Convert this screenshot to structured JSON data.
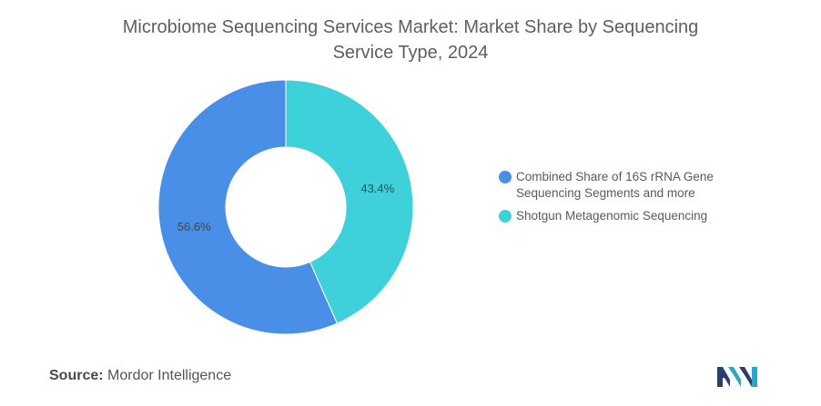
{
  "title_line1": "Microbiome Sequencing Services Market: Market Share by Sequencing",
  "title_line2": "Service Type, 2024",
  "source_label": "Source:",
  "source_value": "Mordor Intelligence",
  "chart_data": {
    "type": "pie",
    "donut": true,
    "title": "Microbiome Sequencing Services Market: Market Share by Sequencing Service Type, 2024",
    "slices": [
      {
        "label": "Shotgun Metagenomic Sequencing",
        "value": 43.4,
        "display": "43.4%",
        "color": "#3fd1d9"
      },
      {
        "label": "Combined Share of 16S rRNA Gene Sequencing Segments and more",
        "value": 56.6,
        "display": "56.6%",
        "color": "#4a8fe7"
      }
    ],
    "legend": {
      "placement": "right",
      "items": [
        {
          "label": "Combined Share of 16S rRNA Gene Sequencing Segments and more",
          "color": "#4a8fe7"
        },
        {
          "label": "Shotgun Metagenomic Sequencing",
          "color": "#3fd1d9"
        }
      ]
    }
  }
}
